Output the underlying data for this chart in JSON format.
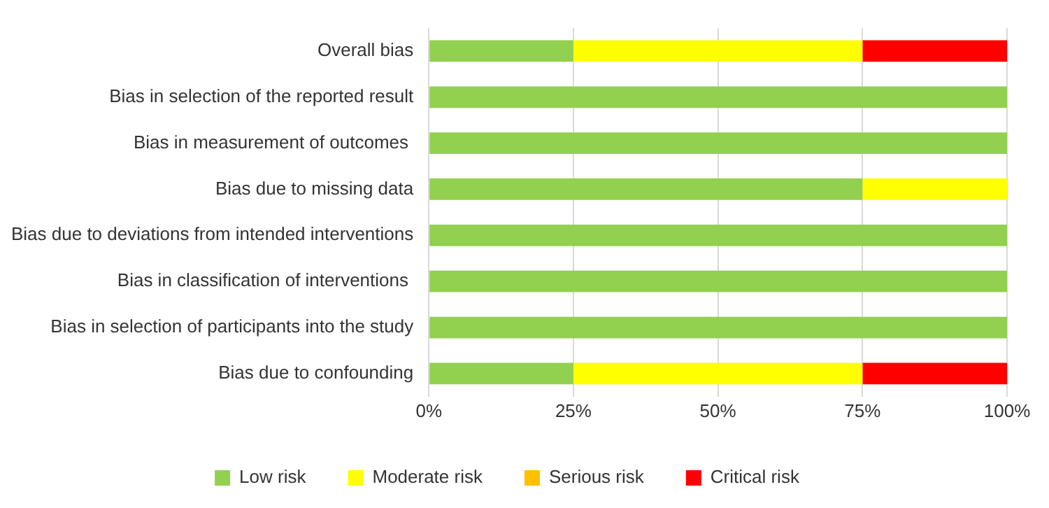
{
  "chart_data": {
    "type": "bar",
    "orientation": "horizontal",
    "stacked": true,
    "categories": [
      "Overall bias",
      "Bias in selection of the reported result",
      "Bias in measurement of outcomes ",
      "Bias due to missing data",
      "Bias due to deviations from intended interventions",
      "Bias in classification of interventions ",
      "Bias in selection of participants into the study",
      "Bias due to confounding"
    ],
    "series": [
      {
        "name": "Low risk",
        "color": "#92d050",
        "values": [
          25,
          100,
          100,
          75,
          100,
          100,
          100,
          25
        ]
      },
      {
        "name": "Moderate risk",
        "color": "#ffff00",
        "values": [
          50,
          0,
          0,
          25,
          0,
          0,
          0,
          50
        ]
      },
      {
        "name": "Serious risk",
        "color": "#ffc000",
        "values": [
          0,
          0,
          0,
          0,
          0,
          0,
          0,
          0
        ]
      },
      {
        "name": "Critical risk",
        "color": "#ff0000",
        "values": [
          25,
          0,
          0,
          0,
          0,
          0,
          0,
          25
        ]
      }
    ],
    "xlim": [
      0,
      100
    ],
    "xticks": [
      {
        "value": 0,
        "label": "0%"
      },
      {
        "value": 25,
        "label": "25%"
      },
      {
        "value": 50,
        "label": "50%"
      },
      {
        "value": 75,
        "label": "75%"
      },
      {
        "value": 100,
        "label": "100%"
      }
    ],
    "grid": "x",
    "legend": "bottom"
  }
}
